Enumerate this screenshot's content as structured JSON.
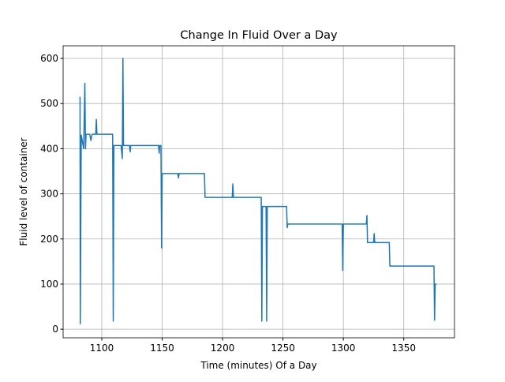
{
  "chart_data": {
    "type": "line",
    "title": "Change In Fluid Over a Day",
    "x_label": "Time (minutes) Of a Day",
    "y_label": "Fluid level of container",
    "x": [
      1082,
      1082.2,
      1083,
      1085,
      1086,
      1086.5,
      1087,
      1090,
      1091,
      1092,
      1095,
      1095.5,
      1096,
      1109,
      1109.5,
      1110,
      1116,
      1117,
      1117.5,
      1118,
      1123,
      1123.5,
      1124,
      1147,
      1147.5,
      1148,
      1149,
      1149.5,
      1150,
      1163,
      1163.5,
      1164,
      1185,
      1185.5,
      1208,
      1208.5,
      1209,
      1232,
      1232.5,
      1233,
      1236,
      1236.5,
      1237,
      1253,
      1253.5,
      1254,
      1299,
      1299.5,
      1300,
      1319,
      1319.5,
      1320,
      1325,
      1325.5,
      1326,
      1338,
      1338.5,
      1375,
      1375.5,
      1376,
      1377
    ],
    "series": [
      {
        "name": "Fluid level",
        "color": "#1f77b4",
        "values": [
          515,
          12,
          430,
          400,
          545,
          400,
          432,
          432,
          418,
          432,
          432,
          465,
          432,
          432,
          18,
          407,
          407,
          378,
          600,
          407,
          407,
          393,
          407,
          407,
          390,
          407,
          407,
          180,
          345,
          345,
          335,
          345,
          345,
          292,
          292,
          322,
          292,
          292,
          18,
          272,
          272,
          18,
          272,
          272,
          225,
          233,
          233,
          130,
          233,
          233,
          252,
          192,
          192,
          212,
          192,
          192,
          140,
          140,
          20,
          100,
          100
        ]
      }
    ],
    "xlim": [
      1068,
      1392
    ],
    "ylim": [
      -19,
      628
    ],
    "xticks": [
      1100,
      1150,
      1200,
      1250,
      1300,
      1350
    ],
    "yticks": [
      0,
      100,
      200,
      300,
      400,
      500,
      600
    ],
    "grid": true
  }
}
